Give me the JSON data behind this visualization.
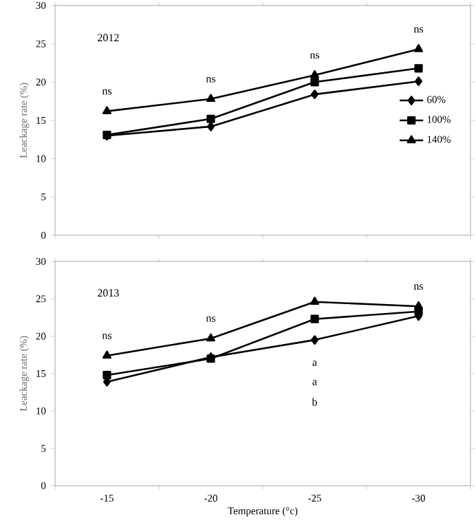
{
  "chart_data": [
    {
      "type": "line",
      "annotations": [
        "2012",
        {
          "text": "ns",
          "x": "-15",
          "y": 16.2
        },
        {
          "text": "ns",
          "x": "-20",
          "y": 17.8
        },
        {
          "text": "ns",
          "x": "-25",
          "y": 20.9
        },
        {
          "text": "ns",
          "x": "-30",
          "y": 24.3
        }
      ],
      "ylabel": "Leackage rate (%)",
      "categories": [
        "-15",
        "-20",
        "-25",
        "-30"
      ],
      "ylim": [
        0,
        30
      ],
      "yticks": [
        0,
        5,
        10,
        15,
        20,
        25,
        30
      ],
      "tick_labels": "y",
      "legend": "right",
      "grid": false,
      "line_style": "solid",
      "series": [
        {
          "name": "60%",
          "color": "#000000",
          "marker": "diamond",
          "values": [
            13.0,
            14.2,
            18.4,
            20.1
          ]
        },
        {
          "name": "100%",
          "color": "#000000",
          "marker": "square",
          "values": [
            13.1,
            15.2,
            20.0,
            21.8
          ]
        },
        {
          "name": "140%",
          "color": "#000000",
          "marker": "triangle",
          "values": [
            16.2,
            17.8,
            20.9,
            24.3
          ]
        }
      ]
    },
    {
      "type": "line",
      "annotations": [
        "2013",
        {
          "text": "ns",
          "x": "-15",
          "y": 17.4
        },
        {
          "text": "ns",
          "x": "-20",
          "y": 19.7
        },
        {
          "text": "a",
          "x": "-25",
          "y": 19.5
        },
        "a",
        "b",
        {
          "text": "ns",
          "x": "-30",
          "y": 24.0
        }
      ],
      "xlabel": "Temperature (°c)",
      "ylabel": "Leackage rate (%)",
      "categories": [
        "-15",
        "-20",
        "-25",
        "-30"
      ],
      "ylim": [
        0,
        30
      ],
      "yticks": [
        0,
        5,
        10,
        15,
        20,
        25,
        30
      ],
      "legend": false,
      "grid": false,
      "line_style": "solid",
      "series": [
        {
          "color": "#000000",
          "marker": "diamond",
          "values": [
            13.9,
            17.2,
            19.5,
            22.7
          ]
        },
        {
          "color": "#000000",
          "marker": "square",
          "values": [
            14.8,
            17.0,
            22.3,
            23.3
          ]
        },
        {
          "color": "#000000",
          "marker": "triangle",
          "values": [
            17.4,
            19.7,
            24.6,
            24.0
          ]
        }
      ]
    }
  ]
}
